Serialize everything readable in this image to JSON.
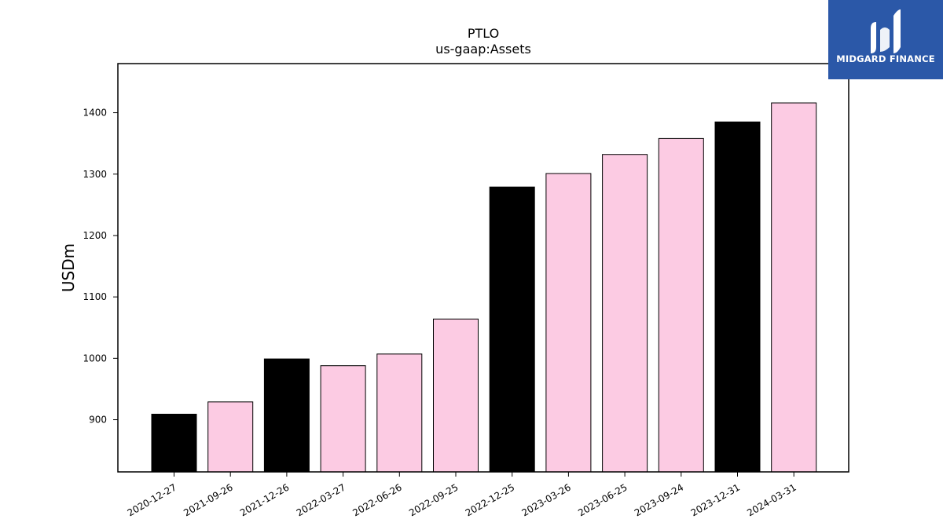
{
  "chart_data": {
    "type": "bar",
    "title": "PTLO",
    "subtitle": "us-gaap:Assets",
    "xlabel": "",
    "ylabel": "USDm",
    "categories": [
      "2020-12-27",
      "2021-09-26",
      "2021-12-26",
      "2022-03-27",
      "2022-06-26",
      "2022-09-25",
      "2022-12-25",
      "2023-03-26",
      "2023-06-25",
      "2023-09-24",
      "2023-12-31",
      "2024-03-31"
    ],
    "values": [
      909,
      929,
      999,
      988,
      1007,
      1064,
      1279,
      1301,
      1332,
      1358,
      1385,
      1416
    ],
    "bar_colors": [
      "#000000",
      "#fccbe3",
      "#000000",
      "#fccbe3",
      "#fccbe3",
      "#fccbe3",
      "#000000",
      "#fccbe3",
      "#fccbe3",
      "#fccbe3",
      "#000000",
      "#fccbe3"
    ],
    "ylim": [
      815,
      1480
    ],
    "yticks": [
      900,
      1000,
      1100,
      1200,
      1300,
      1400
    ],
    "grid": false,
    "legend": "none"
  },
  "logo": {
    "text": "MIDGARD FINANCE",
    "background": "#2b58a8"
  }
}
